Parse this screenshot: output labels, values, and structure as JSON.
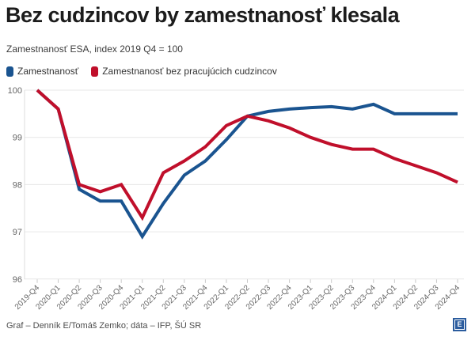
{
  "header": {
    "title": "Bez cudzincov by zamestnanosť klesala",
    "subtitle": "Zamestnanosť ESA, index 2019 Q4 = 100"
  },
  "colors": {
    "employment_blue": "#1a5490",
    "no_foreigners_red": "#c00f2b",
    "logo_blue": "#2b5c9e"
  },
  "legend": [
    {
      "label": "Zamestnanosť",
      "color": "#1a5490"
    },
    {
      "label": "Zamestnanosť bez pracujúcich cudzincov",
      "color": "#c00f2b"
    }
  ],
  "chart_data": {
    "type": "line",
    "categories": [
      "2019-Q4",
      "2020-Q1",
      "2020-Q2",
      "2020-Q3",
      "2020-Q4",
      "2021-Q1",
      "2021-Q2",
      "2021-Q3",
      "2021-Q4",
      "2022-Q1",
      "2022-Q2",
      "2022-Q3",
      "2022-Q4",
      "2023-Q1",
      "2023-Q2",
      "2023-Q3",
      "2023-Q4",
      "2024-Q1",
      "2024-Q2",
      "2024-Q3",
      "2024-Q4"
    ],
    "series": [
      {
        "name": "Zamestnanosť",
        "color": "#1a5490",
        "values": [
          100,
          99.6,
          97.9,
          97.65,
          97.65,
          96.9,
          97.6,
          98.2,
          98.5,
          98.95,
          99.45,
          99.55,
          99.6,
          99.63,
          99.65,
          99.6,
          99.7,
          99.5,
          99.5,
          99.5,
          99.5
        ]
      },
      {
        "name": "Zamestnanosť bez pracujúcich cudzincov",
        "color": "#c00f2b",
        "values": [
          100,
          99.6,
          98.0,
          97.85,
          98.0,
          97.3,
          98.25,
          98.5,
          98.8,
          99.25,
          99.45,
          99.35,
          99.2,
          99.0,
          98.85,
          98.75,
          98.75,
          98.55,
          98.4,
          98.25,
          98.05
        ]
      }
    ],
    "title": "Bez cudzincov by zamestnanosť klesala",
    "subtitle": "Zamestnanosť ESA, index 2019 Q4 = 100",
    "xlabel": "",
    "ylabel": "",
    "yticks": [
      96,
      97,
      98,
      99,
      100
    ],
    "ylim": [
      96,
      100.2
    ],
    "grid": true,
    "legend_position": "top"
  },
  "footer": {
    "credit": "Graf – Denník E/Tomáš Zemko; dáta – IFP, ŠÚ SR",
    "logo_letter": "E"
  }
}
